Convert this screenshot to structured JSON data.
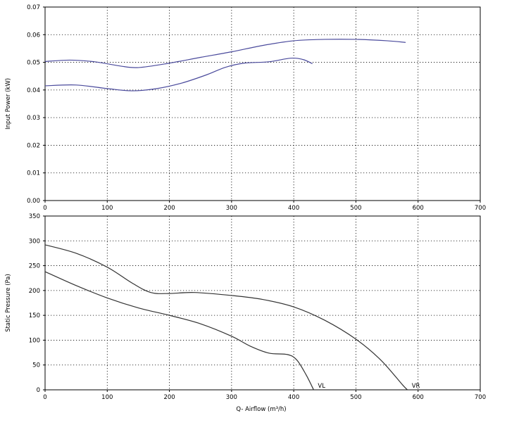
{
  "chart_data": [
    {
      "type": "line",
      "ylabel": "Input Power (kW)",
      "xlabel": "",
      "xlim": [
        0,
        700
      ],
      "ylim": [
        0,
        0.07
      ],
      "x_ticks": [
        "0",
        "100",
        "200",
        "300",
        "400",
        "500",
        "600",
        "700"
      ],
      "y_ticks": [
        "0.00",
        "0.01",
        "0.02",
        "0.03",
        "0.04",
        "0.05",
        "0.06",
        "0.07"
      ],
      "grid": true,
      "series": [
        {
          "color": "#4a4a9c",
          "points": [
            [
              0,
              0.0503
            ],
            [
              40,
              0.0508
            ],
            [
              80,
              0.0502
            ],
            [
              120,
              0.0487
            ],
            [
              150,
              0.0481
            ],
            [
              200,
              0.0497
            ],
            [
              250,
              0.0518
            ],
            [
              300,
              0.0538
            ],
            [
              350,
              0.0561
            ],
            [
              400,
              0.0578
            ],
            [
              450,
              0.0583
            ],
            [
              500,
              0.0583
            ],
            [
              550,
              0.0578
            ],
            [
              580,
              0.0572
            ]
          ]
        },
        {
          "color": "#4a4a9c",
          "points": [
            [
              0,
              0.0415
            ],
            [
              50,
              0.0418
            ],
            [
              100,
              0.0405
            ],
            [
              140,
              0.0397
            ],
            [
              180,
              0.0405
            ],
            [
              220,
              0.0425
            ],
            [
              260,
              0.0455
            ],
            [
              290,
              0.0482
            ],
            [
              320,
              0.0497
            ],
            [
              360,
              0.0502
            ],
            [
              395,
              0.0515
            ],
            [
              415,
              0.051
            ],
            [
              430,
              0.0495
            ]
          ]
        }
      ]
    },
    {
      "type": "line",
      "ylabel": "Static Pressure (Pa)",
      "xlabel": "Q- Airflow (m³/h)",
      "xlim": [
        0,
        700
      ],
      "ylim": [
        0,
        350
      ],
      "x_ticks": [
        "0",
        "100",
        "200",
        "300",
        "400",
        "500",
        "600",
        "700"
      ],
      "y_ticks": [
        "0",
        "50",
        "100",
        "150",
        "200",
        "250",
        "300",
        "350"
      ],
      "grid": true,
      "series": [
        {
          "color": "#333333",
          "end_label": "VR",
          "points": [
            [
              0,
              292
            ],
            [
              50,
              275
            ],
            [
              100,
              247
            ],
            [
              140,
              215
            ],
            [
              170,
              196
            ],
            [
              200,
              194
            ],
            [
              240,
              196
            ],
            [
              300,
              190
            ],
            [
              350,
              182
            ],
            [
              400,
              167
            ],
            [
              450,
              140
            ],
            [
              500,
              102
            ],
            [
              540,
              60
            ],
            [
              575,
              10
            ],
            [
              583,
              0
            ]
          ]
        },
        {
          "color": "#333333",
          "end_label": "VL",
          "points": [
            [
              0,
              238
            ],
            [
              50,
              210
            ],
            [
              100,
              185
            ],
            [
              150,
              165
            ],
            [
              200,
              150
            ],
            [
              250,
              133
            ],
            [
              300,
              108
            ],
            [
              330,
              88
            ],
            [
              360,
              74
            ],
            [
              390,
              71
            ],
            [
              405,
              60
            ],
            [
              420,
              30
            ],
            [
              432,
              0
            ]
          ]
        }
      ]
    }
  ]
}
